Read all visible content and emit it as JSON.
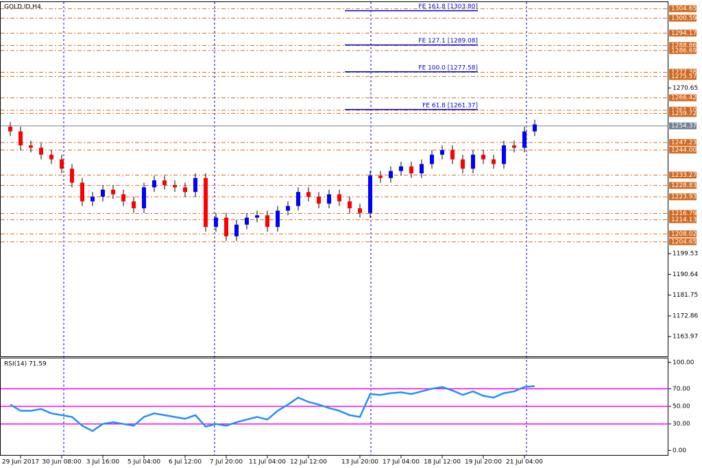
{
  "chart_data": [
    {
      "type": "candlestick",
      "title": "GOLD.ID,H4",
      "categories": [
        null,
        "29 Jun 2017",
        null,
        null,
        null,
        "30 Jun 08:00",
        null,
        null,
        null,
        "3 Jul 16:00",
        null,
        null,
        null,
        "5 Jul 04:00",
        null,
        null,
        null,
        "6 Jul 12:00",
        null,
        null,
        null,
        "7 Jul 20:00",
        null,
        null,
        null,
        "11 Jul 04:00",
        null,
        null,
        null,
        "12 Jul 12:00",
        null,
        null,
        null,
        null,
        "13 Jul 20:00",
        null,
        null,
        null,
        "17 Jul 04:00",
        null,
        null,
        null,
        "18 Jul 12:00",
        null,
        null,
        null,
        "19 Jul 20:00",
        null,
        null,
        null,
        "21 Jul 04:00",
        null
      ],
      "open": [
        1254,
        1252,
        1246,
        1245,
        1242,
        1240,
        1236,
        1230,
        1222,
        1224,
        1227,
        1225,
        1222,
        1219,
        1228,
        1231,
        1229,
        1228,
        1226,
        1232,
        1211,
        1215,
        1207,
        1212,
        1215,
        1216,
        1211,
        1218,
        1220,
        1226,
        1224,
        1221,
        1225,
        1222,
        1219,
        1217,
        1233,
        1232,
        1235,
        1237,
        1234,
        1238,
        1242,
        1244,
        1240,
        1236,
        1242,
        1240,
        1238,
        1246,
        1245,
        1252
      ],
      "high": [
        1256,
        1254,
        1248,
        1247,
        1244,
        1242,
        1238,
        1232,
        1226,
        1229,
        1229,
        1227,
        1224,
        1230,
        1233,
        1233,
        1231,
        1230,
        1234,
        1234,
        1217,
        1217,
        1214,
        1217,
        1218,
        1218,
        1220,
        1222,
        1228,
        1228,
        1226,
        1227,
        1227,
        1224,
        1221,
        1235,
        1235,
        1237,
        1239,
        1239,
        1240,
        1244,
        1246,
        1246,
        1242,
        1244,
        1244,
        1242,
        1248,
        1248,
        1254,
        1257
      ],
      "low": [
        1250,
        1244,
        1243,
        1240,
        1238,
        1234,
        1228,
        1220,
        1220,
        1222,
        1223,
        1220,
        1217,
        1217,
        1226,
        1227,
        1226,
        1224,
        1224,
        1209,
        1209,
        1205,
        1205,
        1210,
        1213,
        1209,
        1209,
        1216,
        1218,
        1222,
        1219,
        1219,
        1220,
        1217,
        1215,
        1215,
        1230,
        1230,
        1233,
        1232,
        1232,
        1236,
        1240,
        1238,
        1234,
        1234,
        1238,
        1236,
        1236,
        1243,
        1243,
        1250
      ],
      "close": [
        1252,
        1246,
        1245,
        1242,
        1240,
        1236,
        1230,
        1222,
        1224,
        1227,
        1225,
        1222,
        1219,
        1228,
        1231,
        1229,
        1228,
        1226,
        1232,
        1211,
        1215,
        1207,
        1212,
        1215,
        1216,
        1211,
        1218,
        1220,
        1226,
        1224,
        1221,
        1225,
        1222,
        1219,
        1217,
        1233,
        1232,
        1235,
        1237,
        1234,
        1238,
        1242,
        1244,
        1240,
        1236,
        1242,
        1240,
        1238,
        1246,
        1245,
        1252,
        1255
      ],
      "up_color": "#0000ff",
      "down_color": "#ff0000",
      "ylim": [
        1155.5,
        1307.5
      ],
      "yticks": [
        1270.65,
        1199.53,
        1190.64,
        1181.75,
        1172.86,
        1163.97
      ],
      "levels": [
        1304.65,
        1300.59,
        1294.17,
        1288.86,
        1286.69,
        1277.38,
        1275.57,
        1266.42,
        {
          "value": 1261.1,
          "label": "1261.10"
        },
        1259.72,
        1247.23,
        {
          "value": 1244.0,
          "label": "1244.00"
        },
        1233.27,
        1228.83,
        1223.93,
        1216.79,
        1214.13,
        1208.02,
        1204.65
      ],
      "level_color": "#d2691e",
      "current_price": 1254.37,
      "fib_levels": [
        {
          "value": 1303.8,
          "label": "FE 161.8 [1303.80]"
        },
        {
          "value": 1289.08,
          "label": "FE 127.1 [1289.08]"
        },
        {
          "value": 1277.58,
          "label": "FE 100.0 [1277.58]"
        },
        {
          "value": 1261.37,
          "label": "FE 61.8 [1261.37]"
        }
      ],
      "fib_color": "#0000cd"
    },
    {
      "type": "line",
      "title": "RSI(14) 71.59",
      "values": [
        52,
        45,
        45,
        47,
        42,
        40,
        38,
        28,
        22,
        30,
        32,
        30,
        28,
        38,
        42,
        40,
        38,
        36,
        40,
        27,
        30,
        28,
        32,
        35,
        38,
        35,
        45,
        52,
        60,
        55,
        52,
        48,
        45,
        40,
        38,
        64,
        63,
        65,
        66,
        64,
        67,
        70,
        72,
        68,
        63,
        67,
        62,
        60,
        65,
        67,
        72,
        73
      ],
      "color": "#1e90ff",
      "ylim": [
        -6,
        104.5
      ],
      "yticks": [
        {
          "value": 100,
          "label": "100.00"
        },
        {
          "value": 70,
          "label": "70.00"
        },
        {
          "value": 50,
          "label": "50.00"
        },
        {
          "value": 30,
          "label": "30.00"
        },
        {
          "value": 0,
          "label": "0.00"
        }
      ],
      "levels": [
        70,
        50,
        30
      ],
      "level_color": "#ff00ff"
    }
  ]
}
